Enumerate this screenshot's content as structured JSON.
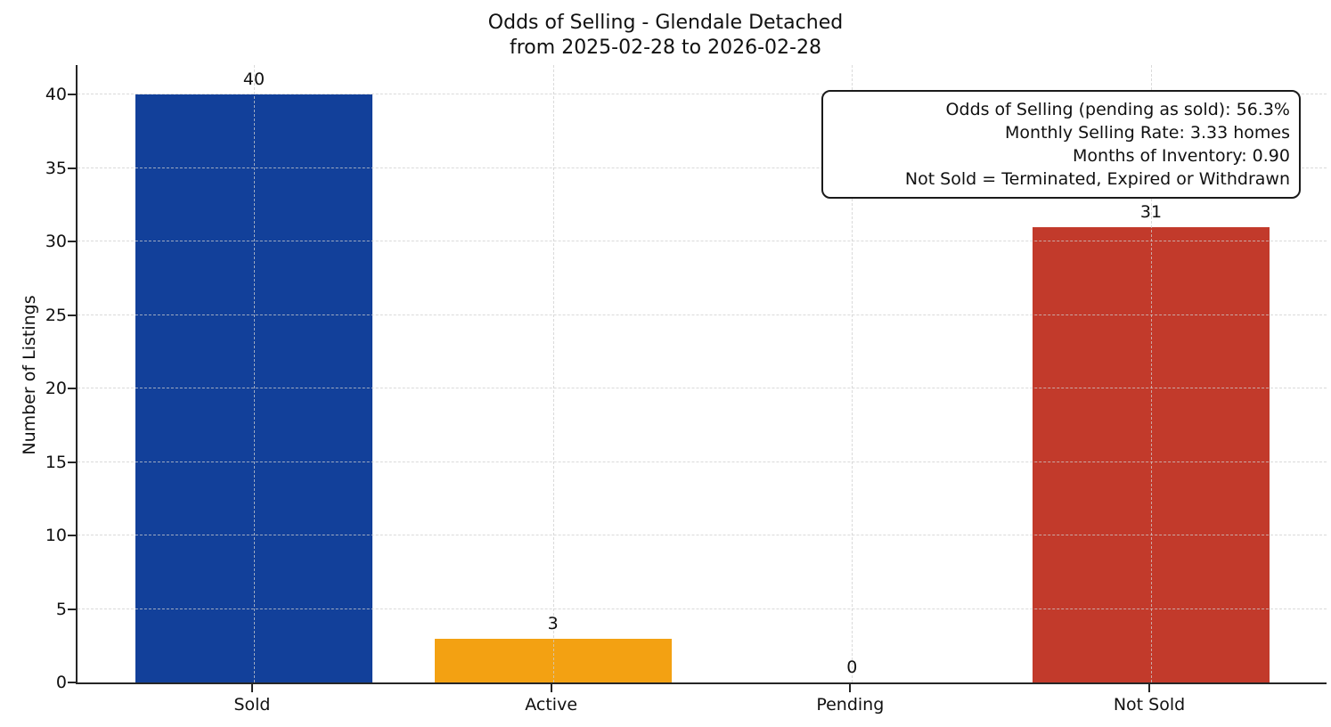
{
  "figure": {
    "title_line1": "Odds of Selling - Glendale Detached",
    "title_line2": "from 2025-02-28 to 2026-02-28",
    "ylabel": "Number of Listings"
  },
  "annotation": {
    "line1": "Odds of Selling (pending as sold): 56.3%",
    "line2": "Monthly Selling Rate: 3.33 homes",
    "line3": "Months of Inventory: 0.90",
    "line4": "Not Sold = Terminated, Expired or Withdrawn"
  },
  "chart_data": {
    "type": "bar",
    "title": "Odds of Selling - Glendale Detached from 2025-02-28 to 2026-02-28",
    "categories": [
      "Sold",
      "Active",
      "Pending",
      "Not Sold"
    ],
    "values": [
      40,
      3,
      0,
      31
    ],
    "bar_value_labels": [
      "40",
      "3",
      "0",
      "31"
    ],
    "bar_colors": [
      "#12409a",
      "#f3a112",
      null,
      "#c23a2b"
    ],
    "xlabel": "",
    "ylabel": "Number of Listings",
    "ylim": [
      0,
      42
    ],
    "yticks": [
      0,
      5,
      10,
      15,
      20,
      25,
      30,
      35,
      40
    ],
    "grid": true,
    "grid_style": "dashed",
    "axis_color": "#262626",
    "legend": "none"
  }
}
